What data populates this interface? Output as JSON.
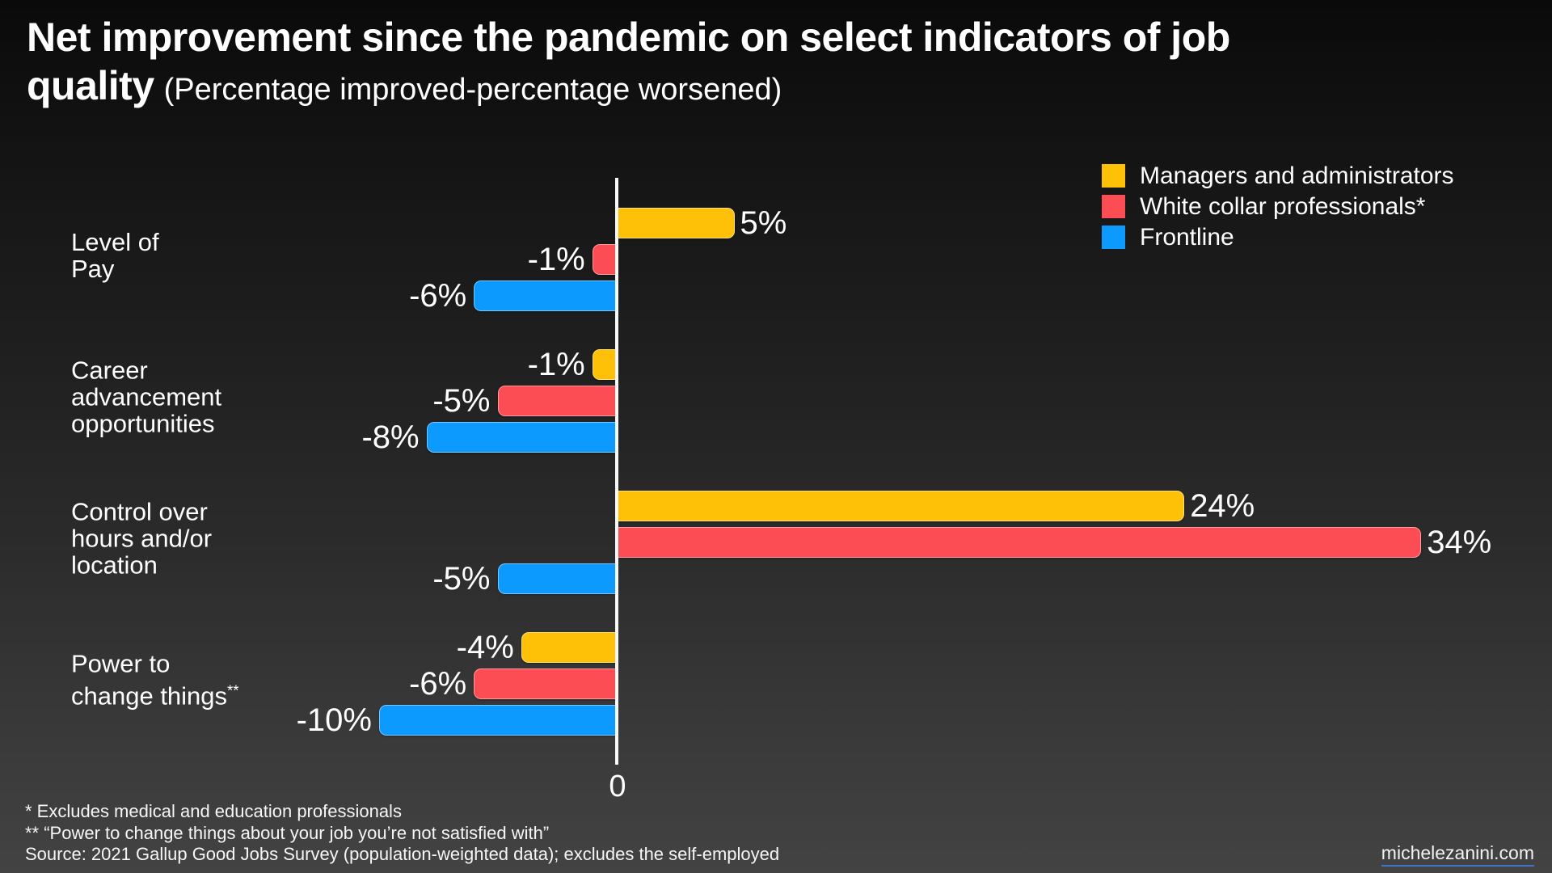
{
  "header": {
    "title_line1": "Net improvement since the pandemic on select indicators of job",
    "title_line2": "quality",
    "subtitle": "(Percentage improved-percentage worsened)"
  },
  "chart_data": {
    "type": "bar",
    "orientation": "horizontal",
    "value_unit": "%",
    "title": "Net improvement since the pandemic on select indicators of job quality",
    "subtitle": "(Percentage improved-percentage worsened)",
    "xlim": [
      -10,
      39
    ],
    "grid": false,
    "legend_position": "top-right",
    "axis": {
      "zero_label": "0",
      "line_color": "#F8F8F8"
    },
    "series": [
      {
        "name": "Managers and administrators",
        "color": "#FFC107"
      },
      {
        "name": "White collar professionals*",
        "color": "#FC4C54"
      },
      {
        "name": "Frontline",
        "color": "#0D9AFE"
      }
    ],
    "categories": [
      {
        "label_lines": [
          "Level of",
          "Pay"
        ],
        "values": [
          5,
          -1,
          -6
        ],
        "value_labels": [
          "5%",
          "-1%",
          "-6%"
        ]
      },
      {
        "label_lines": [
          "Career",
          "advancement",
          "opportunities"
        ],
        "values": [
          -1,
          -5,
          -8
        ],
        "value_labels": [
          "-1%",
          "-5%",
          "-8%"
        ]
      },
      {
        "label_lines": [
          "Control over",
          "hours and/or",
          "location"
        ],
        "values": [
          24,
          34,
          -5
        ],
        "value_labels": [
          "24%",
          "34%",
          "-5%"
        ]
      },
      {
        "label_lines": [
          "Power to",
          "change things"
        ],
        "label_superscript": "**",
        "values": [
          -4,
          -6,
          -10
        ],
        "value_labels": [
          "-4%",
          "-6%",
          "-10%"
        ]
      }
    ]
  },
  "footnotes": {
    "line1": "* Excludes medical and education professionals",
    "line2": "** “Power to change things about your job you’re not satisfied with”",
    "line3": "Source: 2021 Gallup Good Jobs Survey (population-weighted data); excludes the self-employed"
  },
  "footer": {
    "website_link": "michelezanini.com",
    "link_underline_color": "#4472C4"
  }
}
